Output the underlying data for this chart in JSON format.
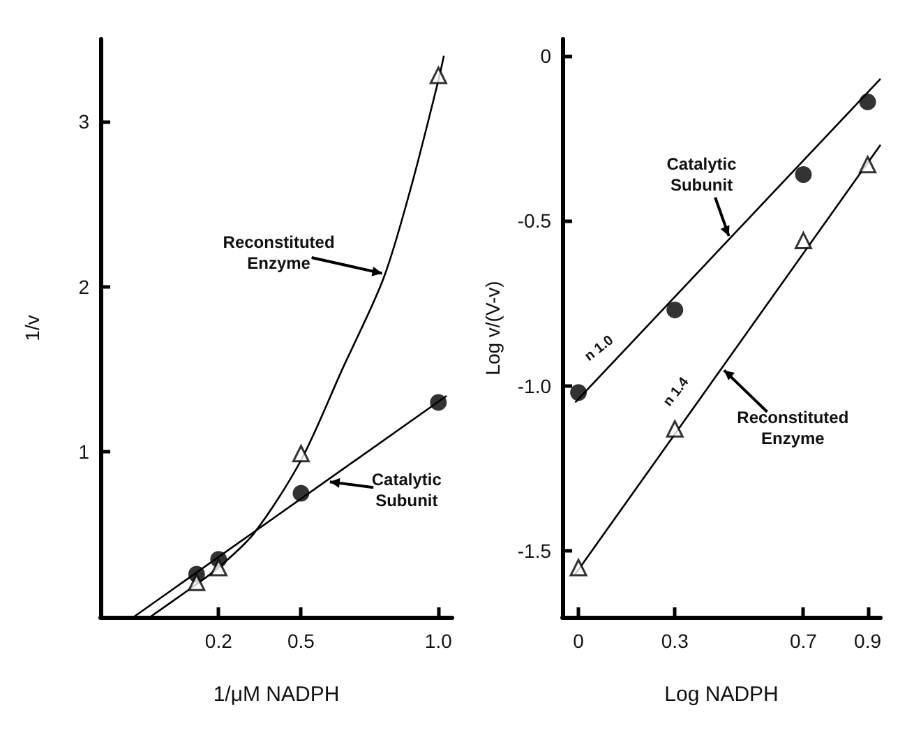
{
  "chart_data": [
    {
      "type": "scatter",
      "xlabel": "1/μM NADPH",
      "ylabel": "1/v",
      "xlim": [
        -0.23,
        1.05
      ],
      "ylim": [
        0,
        3.5
      ],
      "xticks": [
        {
          "value": 0.2,
          "label": "0.2"
        },
        {
          "value": 0.5,
          "label": "0.5"
        },
        {
          "value": 1.0,
          "label": "1.0"
        }
      ],
      "yticks": [
        1,
        2,
        3
      ],
      "grid": false,
      "line_style": "solid",
      "series": [
        {
          "type": "scatter",
          "marker": "circle",
          "color": "#000000",
          "x": [
            0.12,
            0.2,
            0.5,
            1.0
          ],
          "values": [
            0.26,
            0.35,
            0.75,
            1.3
          ]
        },
        {
          "type": "scatter",
          "marker": "triangle",
          "color": "#000000",
          "x": [
            0.12,
            0.2,
            0.5,
            1.0
          ],
          "values": [
            0.21,
            0.3,
            0.99,
            3.28
          ]
        },
        {
          "type": "line",
          "marker": "none",
          "color": "#000000",
          "x": [
            -0.11,
            1.03
          ],
          "values": [
            0,
            1.34
          ]
        },
        {
          "type": "line",
          "marker": "none",
          "color": "#000000",
          "x": [
            -0.05,
            0.12,
            0.2,
            0.33,
            0.5,
            0.65,
            0.8,
            0.9,
            1.0,
            1.02
          ],
          "values": [
            0,
            0.2,
            0.3,
            0.51,
            0.95,
            1.5,
            2.05,
            2.6,
            3.25,
            3.4
          ]
        }
      ],
      "annotations": [
        {
          "text": "Reconstituted\nEnzyme",
          "x": 0.8,
          "y": 2.08
        },
        {
          "text": "Catalytic\nSubunit",
          "x": 0.6,
          "y": 0.82
        }
      ]
    },
    {
      "type": "scatter",
      "xlabel": "Log NADPH",
      "ylabel": "Log v/(V-v)",
      "xlim": [
        -0.05,
        0.94
      ],
      "ylim": [
        -1.7,
        0.05
      ],
      "xticks": [
        0,
        0.3,
        0.7,
        0.9
      ],
      "yticks": [
        0,
        {
          "value": -0.5,
          "label": "-0.5"
        },
        {
          "value": -1.0,
          "label": "-1.0"
        },
        -1.5
      ],
      "grid": false,
      "line_style": "solid",
      "series": [
        {
          "type": "scatter",
          "marker": "circle",
          "color": "#000000",
          "x": [
            0,
            0.3,
            0.7,
            0.9
          ],
          "values": [
            -1.02,
            -0.77,
            -0.36,
            -0.14
          ]
        },
        {
          "type": "scatter",
          "marker": "triangle",
          "color": "#000000",
          "x": [
            0,
            0.3,
            0.7,
            0.9
          ],
          "values": [
            -1.55,
            -1.13,
            -0.56,
            -0.33
          ]
        },
        {
          "type": "line",
          "marker": "none",
          "color": "#000000",
          "x": [
            -0.01,
            0.94
          ],
          "values": [
            -1.05,
            -0.07
          ]
        },
        {
          "type": "line",
          "marker": "none",
          "color": "#000000",
          "x": [
            -0.01,
            0.94
          ],
          "values": [
            -1.57,
            -0.27
          ]
        }
      ],
      "annotations": [
        {
          "text": "Catalytic\nSubunit",
          "x": 0.47,
          "y": -0.55
        },
        {
          "text": "Reconstituted\nEnzyme",
          "x": 0.45,
          "y": -0.95
        },
        {
          "text": "n 1.0",
          "x": 0.1,
          "y": -0.93
        },
        {
          "text": "n 1.4",
          "x": 0.34,
          "y": -1.07
        }
      ]
    }
  ]
}
